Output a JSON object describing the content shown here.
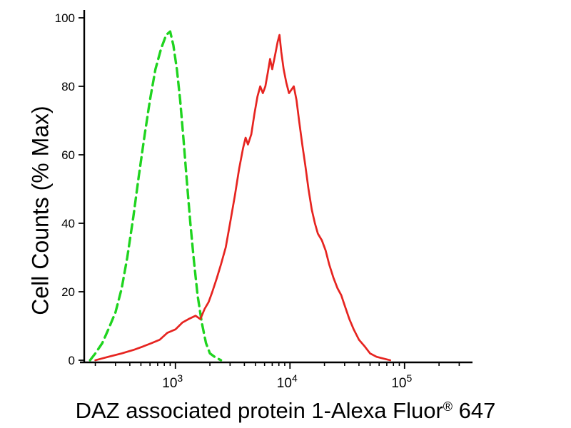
{
  "figure": {
    "background": "#ffffff"
  },
  "chart_data": {
    "type": "line",
    "subtype": "flow-cytometry-histogram",
    "title": "",
    "xlabel": "DAZ associated protein 1-Alexa Fluor® 647",
    "xlabel_parts": {
      "main": "DAZ associated protein 1-Alexa Fluor",
      "sup": "®",
      "suffix": " 647"
    },
    "ylabel": "Cell Counts (% Max)",
    "x_scale": "log",
    "xlim": [
      160,
      370000
    ],
    "ylim": [
      0,
      100
    ],
    "y_ticks": [
      0,
      20,
      40,
      60,
      80,
      100
    ],
    "x_major_ticks": [
      {
        "base": "10",
        "exp": "3",
        "value": 1000
      },
      {
        "base": "10",
        "exp": "4",
        "value": 10000
      },
      {
        "base": "10",
        "exp": "5",
        "value": 100000
      }
    ],
    "grid": false,
    "legend": "none",
    "axis_color": "#000000",
    "series": [
      {
        "name": "green-dashed-control",
        "style": "dashed",
        "color": "#1fd41f",
        "width": 3.4,
        "points": [
          [
            180,
            0
          ],
          [
            200,
            2
          ],
          [
            230,
            5
          ],
          [
            260,
            9
          ],
          [
            300,
            14
          ],
          [
            340,
            21
          ],
          [
            380,
            30
          ],
          [
            430,
            42
          ],
          [
            480,
            54
          ],
          [
            540,
            66
          ],
          [
            600,
            76
          ],
          [
            670,
            85
          ],
          [
            750,
            91
          ],
          [
            830,
            95
          ],
          [
            900,
            96
          ],
          [
            960,
            92
          ],
          [
            1030,
            85
          ],
          [
            1100,
            76
          ],
          [
            1180,
            64
          ],
          [
            1260,
            52
          ],
          [
            1350,
            40
          ],
          [
            1450,
            29
          ],
          [
            1560,
            19
          ],
          [
            1700,
            11
          ],
          [
            1850,
            5
          ],
          [
            2000,
            2
          ],
          [
            2200,
            1
          ],
          [
            2500,
            0
          ]
        ]
      },
      {
        "name": "red-solid-sample",
        "style": "solid",
        "color": "#e62420",
        "width": 2.7,
        "points": [
          [
            200,
            0
          ],
          [
            260,
            1
          ],
          [
            340,
            2
          ],
          [
            430,
            3
          ],
          [
            520,
            4
          ],
          [
            620,
            5
          ],
          [
            730,
            6
          ],
          [
            850,
            8
          ],
          [
            1000,
            9
          ],
          [
            1150,
            11
          ],
          [
            1300,
            12
          ],
          [
            1500,
            13
          ],
          [
            1650,
            12
          ],
          [
            1800,
            15
          ],
          [
            1950,
            17
          ],
          [
            2100,
            20
          ],
          [
            2300,
            24
          ],
          [
            2500,
            28
          ],
          [
            2750,
            33
          ],
          [
            3000,
            40
          ],
          [
            3300,
            48
          ],
          [
            3600,
            56
          ],
          [
            3900,
            62
          ],
          [
            4100,
            65
          ],
          [
            4300,
            63
          ],
          [
            4600,
            66
          ],
          [
            4900,
            72
          ],
          [
            5200,
            77
          ],
          [
            5500,
            80
          ],
          [
            5800,
            78
          ],
          [
            6100,
            80
          ],
          [
            6400,
            84
          ],
          [
            6700,
            88
          ],
          [
            7000,
            85
          ],
          [
            7400,
            89
          ],
          [
            7800,
            93
          ],
          [
            8100,
            95
          ],
          [
            8400,
            90
          ],
          [
            8800,
            85
          ],
          [
            9300,
            81
          ],
          [
            9800,
            78
          ],
          [
            10300,
            79
          ],
          [
            10800,
            80
          ],
          [
            11400,
            76
          ],
          [
            12000,
            70
          ],
          [
            12800,
            63
          ],
          [
            13600,
            57
          ],
          [
            14500,
            50
          ],
          [
            15500,
            44
          ],
          [
            16500,
            40
          ],
          [
            17500,
            37
          ],
          [
            19000,
            35
          ],
          [
            20500,
            32
          ],
          [
            22000,
            28
          ],
          [
            24000,
            24
          ],
          [
            26000,
            21
          ],
          [
            28000,
            19
          ],
          [
            30000,
            16
          ],
          [
            33000,
            12
          ],
          [
            36000,
            9
          ],
          [
            40000,
            6
          ],
          [
            45000,
            4
          ],
          [
            50000,
            2
          ],
          [
            57000,
            1
          ],
          [
            65000,
            0.5
          ],
          [
            75000,
            0
          ]
        ]
      }
    ]
  }
}
